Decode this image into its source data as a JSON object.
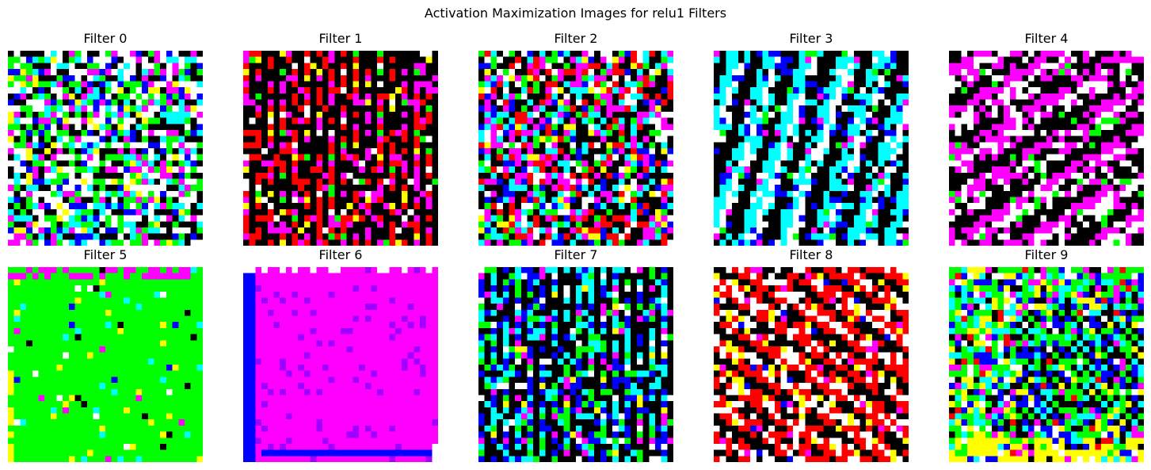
{
  "figure": {
    "title": "Activation Maximization Images for relu1 Filters"
  },
  "chart_data": {
    "type": "heatmap",
    "title": "Activation Maximization Images for relu1 Filters",
    "grid": false,
    "axes": "off",
    "image_size": [
      32,
      32
    ],
    "palette": {
      "black": "#000000",
      "blue": "#0000ff",
      "green": "#00ff00",
      "cyan": "#00ffff",
      "red": "#ff0000",
      "magenta": "#ff00ff",
      "yellow": "#ffff00",
      "white": "#ffffff"
    },
    "panels": [
      {
        "label": "Filter 0",
        "filter": 0,
        "pattern": "noise",
        "dominant_colors": [
          "#ffffff",
          "#00ff00",
          "#00ffff",
          "#0000ff",
          "#ff00ff",
          "#ffff00",
          "#000000"
        ],
        "weights": [
          5,
          4,
          3,
          2,
          2,
          1,
          2
        ],
        "orientation": "horizontal"
      },
      {
        "label": "Filter 1",
        "filter": 1,
        "pattern": "vertical-stripes",
        "dominant_colors": [
          "#ff0000",
          "#000000",
          "#ff00ff",
          "#ffff00",
          "#ffffff",
          "#00ff00"
        ],
        "weights": [
          6,
          5,
          4,
          1,
          1,
          1
        ],
        "orientation": "vertical"
      },
      {
        "label": "Filter 2",
        "filter": 2,
        "pattern": "diagonal-noise",
        "dominant_colors": [
          "#ff00ff",
          "#000000",
          "#ffffff",
          "#00ffff",
          "#ff0000",
          "#0000ff",
          "#00ff00",
          "#ffff00"
        ],
        "weights": [
          4,
          4,
          3,
          3,
          3,
          2,
          2,
          1
        ],
        "orientation": "diagonal-down"
      },
      {
        "label": "Filter 3",
        "filter": 3,
        "pattern": "diagonal-stripes",
        "dominant_colors": [
          "#00ffff",
          "#000000",
          "#0000ff",
          "#ffffff",
          "#ff00ff",
          "#00ff00"
        ],
        "weights": [
          5,
          5,
          4,
          3,
          1,
          1
        ],
        "orientation": "diagonal-steep"
      },
      {
        "label": "Filter 4",
        "filter": 4,
        "pattern": "diagonal-stripes",
        "dominant_colors": [
          "#ff00ff",
          "#000000",
          "#ffffff",
          "#00ff00"
        ],
        "weights": [
          5,
          5,
          5,
          1
        ],
        "orientation": "diagonal-down"
      },
      {
        "label": "Filter 5",
        "filter": 5,
        "pattern": "flat-green",
        "dominant_colors": [
          "#00ff00",
          "#ffff00",
          "#00ffff",
          "#ffffff",
          "#000000",
          "#ff00ff",
          "#0000ff"
        ],
        "weights": [
          16,
          2,
          2,
          1,
          1,
          1,
          1
        ],
        "orientation": "none"
      },
      {
        "label": "Filter 6",
        "filter": 6,
        "pattern": "flat-magenta",
        "dominant_colors": [
          "#ff00ff",
          "#0000ff",
          "#ffffff"
        ],
        "weights": [
          30,
          2,
          1
        ],
        "orientation": "none"
      },
      {
        "label": "Filter 7",
        "filter": 7,
        "pattern": "vertical-stripes",
        "dominant_colors": [
          "#00ffff",
          "#0000ff",
          "#000000",
          "#00ff00",
          "#ff00ff",
          "#ffffff",
          "#ffff00"
        ],
        "weights": [
          5,
          4,
          4,
          3,
          2,
          2,
          1
        ],
        "orientation": "vertical"
      },
      {
        "label": "Filter 8",
        "filter": 8,
        "pattern": "diagonal-stripes",
        "dominant_colors": [
          "#ff0000",
          "#ffffff",
          "#000000",
          "#ffff00",
          "#ff00ff",
          "#0000ff"
        ],
        "weights": [
          6,
          5,
          4,
          2,
          1,
          1
        ],
        "orientation": "diagonal-up"
      },
      {
        "label": "Filter 9",
        "filter": 9,
        "pattern": "checkerboard",
        "dominant_colors": [
          "#00ff00",
          "#ffff00",
          "#0000ff",
          "#00ffff",
          "#000000",
          "#ff00ff",
          "#ffffff",
          "#ff0000"
        ],
        "weights": [
          6,
          3,
          3,
          3,
          2,
          2,
          2,
          1
        ],
        "orientation": "checker"
      }
    ]
  }
}
